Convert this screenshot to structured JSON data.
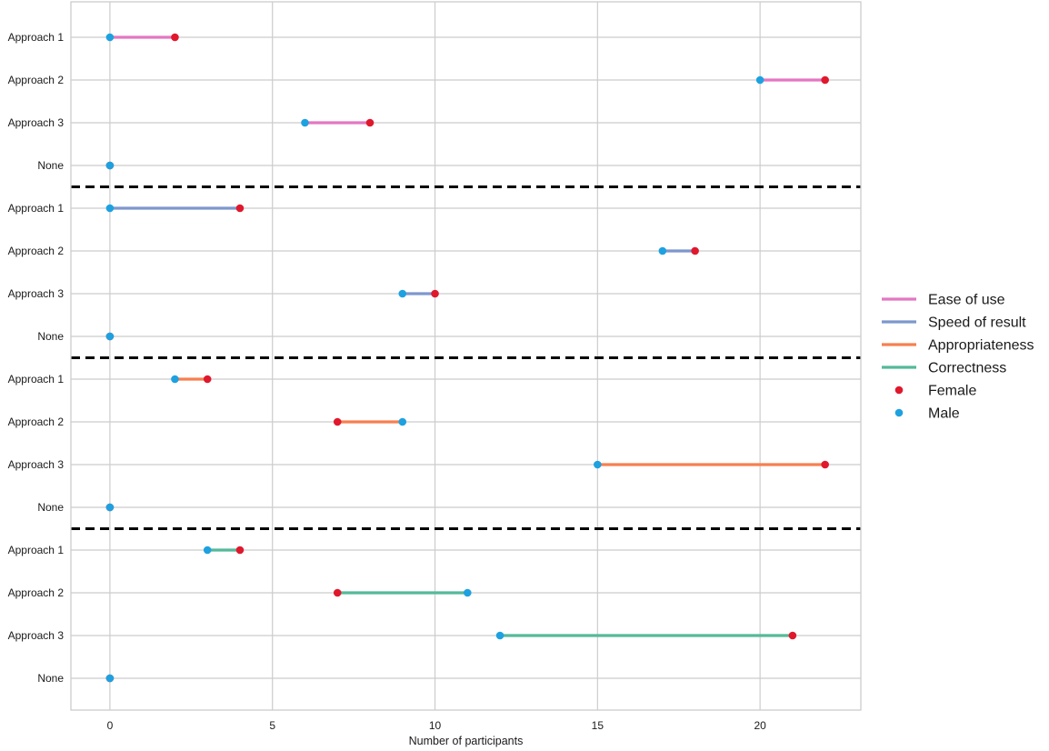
{
  "chart_data": {
    "type": "dumbbell",
    "xlabel": "Number of participants",
    "xlim": [
      -1.2,
      23.1
    ],
    "xticks": [
      0,
      5,
      10,
      15,
      20
    ],
    "grid": true,
    "legend_position": "right",
    "colors": {
      "female": "#e0182d",
      "male": "#1ea1e0",
      "separator": "#000000",
      "grid": "#cccccc"
    },
    "legend": [
      {
        "label": "Ease of use",
        "kind": "line",
        "color": "#e377c2"
      },
      {
        "label": "Speed of result",
        "kind": "line",
        "color": "#7d97cd"
      },
      {
        "label": "Appropriateness",
        "kind": "line",
        "color": "#f77f4f"
      },
      {
        "label": "Correctness",
        "kind": "line",
        "color": "#55b999"
      },
      {
        "label": "Female",
        "kind": "marker",
        "color": "#e0182d"
      },
      {
        "label": "Male",
        "kind": "marker",
        "color": "#1ea1e0"
      }
    ],
    "groups": [
      {
        "criterion": "Ease of use",
        "color": "#e377c2",
        "rows": [
          {
            "label": "Approach 1",
            "male": 0,
            "female": 2
          },
          {
            "label": "Approach 2",
            "male": 20,
            "female": 22
          },
          {
            "label": "Approach 3",
            "male": 6,
            "female": 8
          },
          {
            "label": "None",
            "male": 0,
            "female": 0
          }
        ]
      },
      {
        "criterion": "Speed of result",
        "color": "#7d97cd",
        "rows": [
          {
            "label": "Approach 1",
            "male": 0,
            "female": 4
          },
          {
            "label": "Approach 2",
            "male": 17,
            "female": 18
          },
          {
            "label": "Approach 3",
            "male": 9,
            "female": 10
          },
          {
            "label": "None",
            "male": 0,
            "female": 0
          }
        ]
      },
      {
        "criterion": "Appropriateness",
        "color": "#f77f4f",
        "rows": [
          {
            "label": "Approach 1",
            "male": 2,
            "female": 3
          },
          {
            "label": "Approach 2",
            "male": 9,
            "female": 7
          },
          {
            "label": "Approach 3",
            "male": 15,
            "female": 22
          },
          {
            "label": "None",
            "male": 0,
            "female": 0
          }
        ]
      },
      {
        "criterion": "Correctness",
        "color": "#55b999",
        "rows": [
          {
            "label": "Approach 1",
            "male": 3,
            "female": 4
          },
          {
            "label": "Approach 2",
            "male": 11,
            "female": 7
          },
          {
            "label": "Approach 3",
            "male": 12,
            "female": 21
          },
          {
            "label": "None",
            "male": 0,
            "female": 0
          }
        ]
      }
    ]
  }
}
